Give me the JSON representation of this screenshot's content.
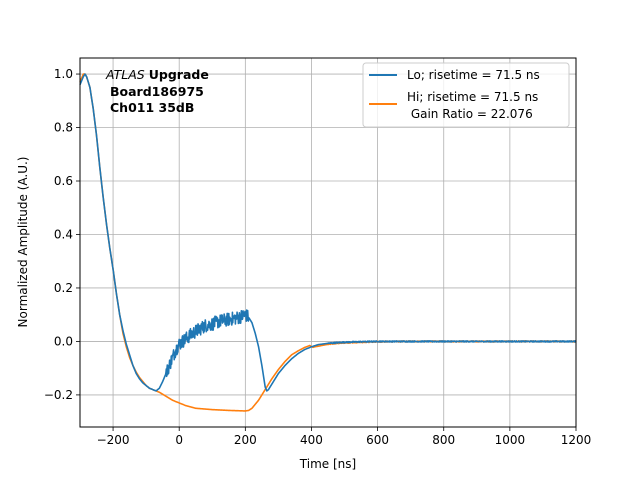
{
  "chart_data": {
    "type": "line",
    "title": "",
    "xlabel": "Time [ns]",
    "ylabel": "Normalized Amplitude (A.U.)",
    "xlim": [
      -300,
      1200
    ],
    "ylim": [
      -0.32,
      1.06
    ],
    "grid": true,
    "xticks": [
      -200,
      0,
      200,
      400,
      600,
      800,
      1000,
      1200
    ],
    "xtick_labels": [
      "−200",
      "0",
      "200",
      "400",
      "600",
      "800",
      "1000",
      "1200"
    ],
    "yticks": [
      -0.2,
      0.0,
      0.2,
      0.4,
      0.6,
      0.8,
      1.0
    ],
    "ytick_labels": [
      "−0.2",
      "0.0",
      "0.2",
      "0.4",
      "0.6",
      "0.8",
      "1.0"
    ],
    "annotation": {
      "atlas": "ATLAS",
      "upgrade": "Upgrade",
      "board": "Board186975",
      "channel": "Ch011 35dB"
    },
    "legend": {
      "placement": "top-right",
      "entries": [
        "Lo; risetime = 71.5 ns",
        "Hi; risetime = 71.5 ns",
        " Gain Ratio = 22.076"
      ]
    },
    "series": [
      {
        "name": "Lo; risetime = 71.5 ns",
        "color": "#1f77b4",
        "noise_range": [
          -40,
          210
        ],
        "x": [
          -300,
          -290,
          -285,
          -280,
          -270,
          -260,
          -250,
          -240,
          -230,
          -220,
          -210,
          -200,
          -190,
          -180,
          -170,
          -160,
          -150,
          -140,
          -130,
          -120,
          -110,
          -100,
          -90,
          -80,
          -70,
          -60,
          -50,
          -40,
          -30,
          -20,
          -10,
          0,
          10,
          20,
          40,
          60,
          80,
          100,
          120,
          140,
          160,
          180,
          200,
          210,
          220,
          230,
          240,
          250,
          255,
          260,
          265,
          270,
          280,
          290,
          300,
          320,
          340,
          360,
          380,
          400,
          420,
          450,
          500,
          550,
          600,
          700,
          800,
          900,
          1000,
          1100,
          1200
        ],
        "y": [
          0.96,
          0.99,
          1.0,
          0.99,
          0.95,
          0.87,
          0.77,
          0.65,
          0.54,
          0.44,
          0.35,
          0.27,
          0.18,
          0.1,
          0.04,
          -0.01,
          -0.05,
          -0.09,
          -0.12,
          -0.14,
          -0.155,
          -0.165,
          -0.175,
          -0.18,
          -0.185,
          -0.175,
          -0.15,
          -0.12,
          -0.09,
          -0.06,
          -0.03,
          -0.01,
          0.0,
          0.01,
          0.03,
          0.045,
          0.06,
          0.065,
          0.075,
          0.08,
          0.085,
          0.09,
          0.1,
          0.09,
          0.07,
          0.03,
          -0.02,
          -0.09,
          -0.13,
          -0.17,
          -0.185,
          -0.18,
          -0.16,
          -0.14,
          -0.12,
          -0.09,
          -0.065,
          -0.045,
          -0.03,
          -0.02,
          -0.012,
          -0.007,
          -0.003,
          -0.001,
          0.0,
          0.0,
          0.0,
          0.0,
          0.0,
          0.0,
          0.0
        ]
      },
      {
        "name": "Hi; risetime = 71.5 ns",
        "color": "#ff7f0e",
        "x": [
          -300,
          -290,
          -285,
          -280,
          -270,
          -260,
          -250,
          -240,
          -230,
          -220,
          -210,
          -200,
          -190,
          -180,
          -170,
          -160,
          -150,
          -140,
          -130,
          -120,
          -110,
          -100,
          -90,
          -80,
          -70,
          -60,
          -40,
          -20,
          0,
          20,
          50,
          100,
          150,
          200,
          210,
          220,
          230,
          240,
          250,
          260,
          270,
          280,
          300,
          320,
          340,
          360,
          380,
          395,
          400,
          405,
          410,
          420,
          440,
          460,
          500,
          550,
          600,
          700,
          800,
          900,
          1000,
          1100,
          1200
        ],
        "y": [
          0.97,
          1.0,
          1.0,
          0.99,
          0.95,
          0.87,
          0.77,
          0.65,
          0.54,
          0.44,
          0.35,
          0.27,
          0.18,
          0.1,
          0.03,
          -0.02,
          -0.06,
          -0.09,
          -0.115,
          -0.135,
          -0.15,
          -0.165,
          -0.175,
          -0.18,
          -0.185,
          -0.19,
          -0.205,
          -0.22,
          -0.23,
          -0.24,
          -0.25,
          -0.255,
          -0.258,
          -0.26,
          -0.258,
          -0.25,
          -0.235,
          -0.22,
          -0.2,
          -0.18,
          -0.16,
          -0.14,
          -0.105,
          -0.075,
          -0.05,
          -0.035,
          -0.022,
          -0.015,
          -0.02,
          -0.022,
          -0.02,
          -0.018,
          -0.013,
          -0.009,
          -0.005,
          -0.003,
          -0.001,
          0.0,
          0.0,
          0.0,
          0.0,
          0.0,
          0.0
        ]
      }
    ]
  }
}
